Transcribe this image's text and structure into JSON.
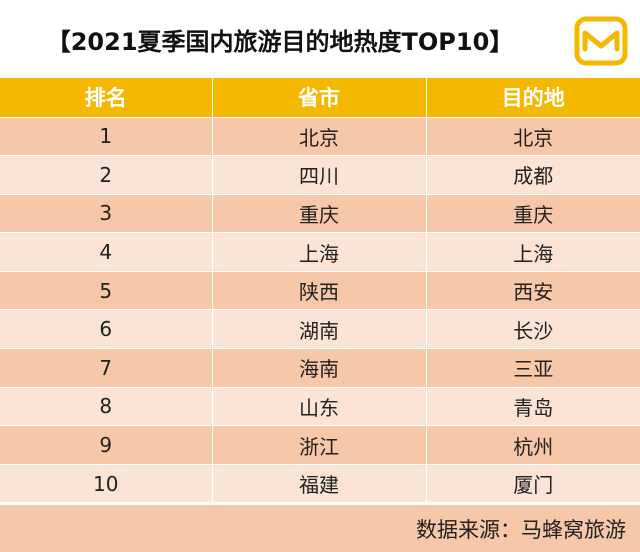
{
  "chart_data": {
    "type": "table",
    "title": "【2021夏季国内旅游目的地热度TOP10】",
    "columns": [
      "排名",
      "省市",
      "目的地"
    ],
    "rows": [
      [
        "1",
        "北京",
        "北京"
      ],
      [
        "2",
        "四川",
        "成都"
      ],
      [
        "3",
        "重庆",
        "重庆"
      ],
      [
        "4",
        "上海",
        "上海"
      ],
      [
        "5",
        "陕西",
        "西安"
      ],
      [
        "6",
        "湖南",
        "长沙"
      ],
      [
        "7",
        "海南",
        "三亚"
      ],
      [
        "8",
        "山东",
        "青岛"
      ],
      [
        "9",
        "浙江",
        "杭州"
      ],
      [
        "10",
        "福建",
        "厦门"
      ]
    ],
    "source": "数据来源：马蜂窝旅游"
  },
  "colors": {
    "header_bg": "#f5b800",
    "row_dark": "#f6c7a8",
    "row_light": "#fbe4d5",
    "logo_yellow": "#f5b800"
  },
  "logo_icon": "mafengwo-m-logo-icon"
}
